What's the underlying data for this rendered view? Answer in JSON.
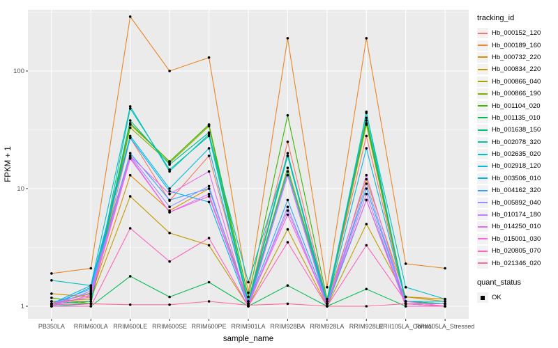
{
  "figure": {
    "y_axis_title": "FPKM + 1",
    "x_axis_title": "sample_name"
  },
  "chart_data": {
    "type": "line",
    "log_y": true,
    "title": "",
    "xlabel": "sample_name",
    "ylabel": "FPKM + 1",
    "panel_bg": "#EBEBEB",
    "grid_color": "#FFFFFF",
    "point_color": "#000000",
    "tick_label_color": "#4D4D4D",
    "y_ticks": [
      1,
      10,
      100
    ],
    "y_minor_ticks": [
      3.162,
      31.62,
      316.2
    ],
    "ylim": [
      0.78,
      331
    ],
    "categories": [
      "PB350LA",
      "RRIM600LA",
      "RRIM600LE",
      "RRIM600SE",
      "RRIM600PE",
      "RRIM901LA",
      "RRIM928BA",
      "RRIM928LA",
      "RRIM928LE",
      "RRII105LA_Control",
      "RRII105LA_Stressed"
    ],
    "legend_title": "tracking_id",
    "series": [
      {
        "name": "Hb_000152_120",
        "color": "#F8766D",
        "values": [
          1.1,
          1.1,
          27,
          7.9,
          19,
          1.1,
          25,
          1.1,
          28,
          1.1,
          1.05
        ]
      },
      {
        "name": "Hb_000189_160",
        "color": "#E88526",
        "values": [
          1.9,
          2.1,
          290,
          100,
          130,
          1.3,
          190,
          1.45,
          190,
          2.3,
          2.1
        ]
      },
      {
        "name": "Hb_000732_220",
        "color": "#D89000",
        "values": [
          1.28,
          1.2,
          13,
          6.5,
          10,
          1.1,
          14,
          1.1,
          12,
          1.2,
          1.15
        ]
      },
      {
        "name": "Hb_000834_220",
        "color": "#C09B00",
        "values": [
          1.1,
          1.15,
          8.6,
          4.2,
          3.3,
          1.0,
          4.5,
          1.0,
          5.0,
          1.2,
          1.1
        ]
      },
      {
        "name": "Hb_000866_040",
        "color": "#A3A500",
        "values": [
          1.05,
          1.28,
          35,
          17,
          35,
          1.05,
          14,
          1.05,
          35,
          1.1,
          1.05
        ]
      },
      {
        "name": "Hb_000866_190",
        "color": "#7CAE00",
        "values": [
          1.1,
          1.05,
          33,
          16.5,
          34,
          1.05,
          15,
          1.1,
          36,
          1.05,
          1.0
        ]
      },
      {
        "name": "Hb_001104_020",
        "color": "#39B600",
        "values": [
          1.18,
          1.05,
          36,
          17,
          35,
          1.2,
          42,
          1.15,
          38,
          1.1,
          1.05
        ]
      },
      {
        "name": "Hb_001135_010",
        "color": "#00BB4E",
        "values": [
          1.0,
          1.0,
          1.8,
          1.2,
          1.6,
          1.0,
          1.5,
          1.0,
          1.4,
          1.0,
          1.0
        ]
      },
      {
        "name": "Hb_001638_150",
        "color": "#00C087",
        "values": [
          1.05,
          1.1,
          38,
          16,
          30,
          1.1,
          20,
          1.05,
          40,
          1.1,
          1.05
        ]
      },
      {
        "name": "Hb_002078_320",
        "color": "#00C1A3",
        "values": [
          1.0,
          1.05,
          48,
          14.5,
          28,
          1.05,
          19,
          1.0,
          45,
          1.05,
          1.0
        ]
      },
      {
        "name": "Hb_002635_020",
        "color": "#00BFC4",
        "values": [
          1.66,
          1.5,
          50,
          14,
          29,
          1.6,
          19,
          1.1,
          44,
          1.45,
          1.15
        ]
      },
      {
        "name": "Hb_002918_120",
        "color": "#00BAE0",
        "values": [
          1.05,
          1.5,
          28,
          10,
          22,
          1.05,
          14,
          1.05,
          22,
          1.1,
          1.1
        ]
      },
      {
        "name": "Hb_003506_010",
        "color": "#00B0F6",
        "values": [
          1.0,
          1.45,
          27,
          9.5,
          7.7,
          1.0,
          13,
          1.0,
          8.0,
          1.05,
          1.05
        ]
      },
      {
        "name": "Hb_004162_320",
        "color": "#35A2FF",
        "values": [
          1.05,
          1.4,
          20,
          8.0,
          10,
          1.05,
          8.0,
          1.05,
          10,
          1.05,
          1.0
        ]
      },
      {
        "name": "Hb_005892_040",
        "color": "#9590FF",
        "values": [
          1.0,
          1.35,
          19,
          7.0,
          10.5,
          1.0,
          7.0,
          1.0,
          11,
          1.05,
          1.05
        ]
      },
      {
        "name": "Hb_010174_180",
        "color": "#C77CFF",
        "values": [
          1.05,
          1.3,
          18.5,
          6.3,
          9.0,
          1.05,
          6.5,
          1.05,
          9.0,
          1.0,
          1.0
        ]
      },
      {
        "name": "Hb_014250_010",
        "color": "#E76BF3",
        "values": [
          1.0,
          1.25,
          19,
          9.0,
          14,
          1.0,
          13,
          1.0,
          13,
          1.05,
          1.0
        ]
      },
      {
        "name": "Hb_015001_030",
        "color": "#FA62DB",
        "values": [
          1.05,
          1.2,
          18,
          6.3,
          8.6,
          1.05,
          6.0,
          1.05,
          8.0,
          1.0,
          1.0
        ]
      },
      {
        "name": "Hb_020805_070",
        "color": "#FF62BC",
        "values": [
          1.0,
          1.0,
          4.6,
          2.4,
          3.8,
          1.0,
          3.5,
          1.0,
          3.3,
          1.1,
          1.0
        ]
      },
      {
        "name": "Hb_021346_020",
        "color": "#FF6A98",
        "values": [
          1.03,
          1.05,
          1.03,
          1.03,
          1.1,
          1.02,
          1.05,
          1.0,
          1.0,
          1.05,
          1.0
        ]
      }
    ],
    "legend2": {
      "title": "quant_status",
      "items": [
        {
          "label": "OK",
          "marker": "black-square"
        }
      ]
    }
  }
}
